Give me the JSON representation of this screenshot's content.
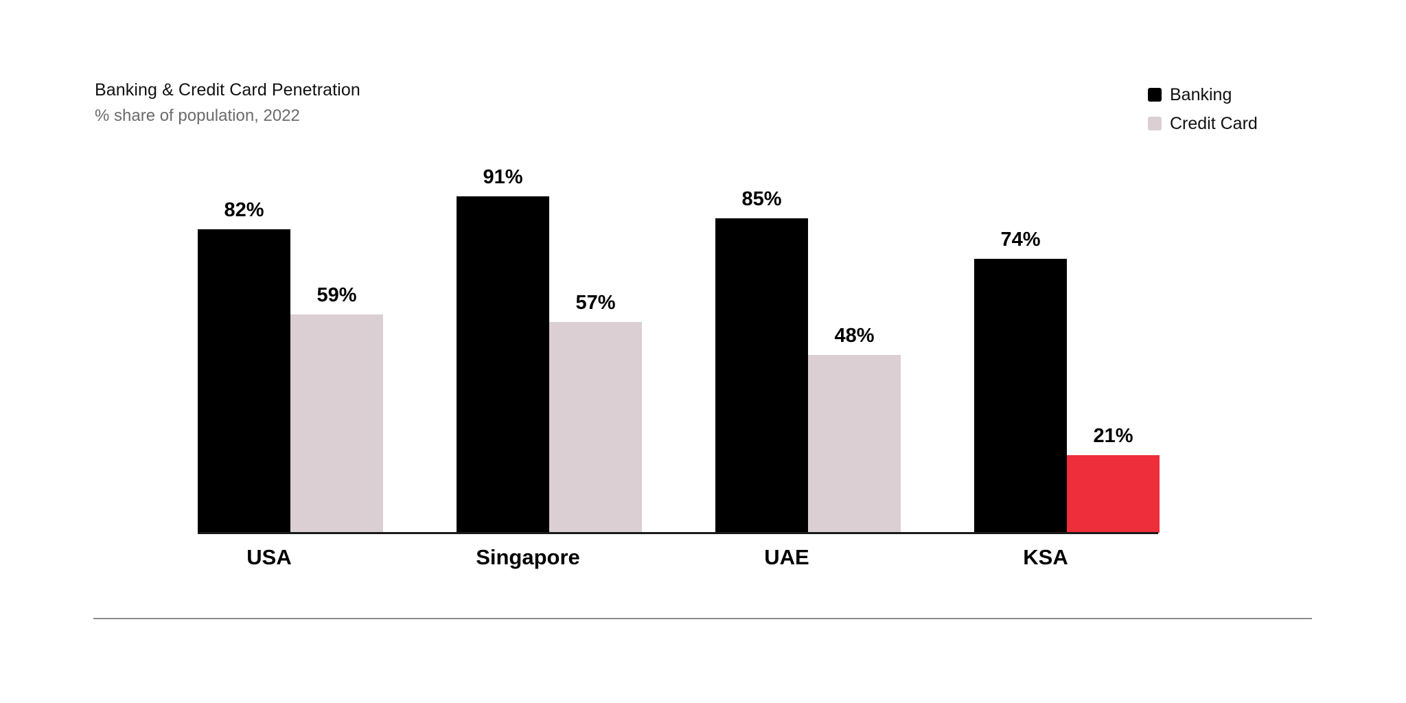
{
  "header": {
    "title": "Banking & Credit Card Penetration",
    "subtitle": "% share of population, 2022"
  },
  "legend": [
    {
      "label": "Banking",
      "color": "#000000"
    },
    {
      "label": "Credit Card",
      "color": "#dccfd3"
    }
  ],
  "colors": {
    "banking": "#000000",
    "credit_card": "#dccfd3",
    "highlight": "#ee2e3a",
    "axis": "#1a1a1a",
    "divider": "#8c8c8c"
  },
  "chart_data": {
    "type": "bar",
    "title": "Banking & Credit Card Penetration",
    "subtitle": "% share of population, 2022",
    "xlabel": "",
    "ylabel": "",
    "categories": [
      "USA",
      "Singapore",
      "UAE",
      "KSA"
    ],
    "series": [
      {
        "name": "Banking",
        "values": [
          82,
          91,
          85,
          74
        ],
        "color": "#000000"
      },
      {
        "name": "Credit Card",
        "values": [
          59,
          57,
          48,
          21
        ],
        "color": "#dccfd3",
        "highlight": {
          "KSA": "#ee2e3a"
        }
      }
    ],
    "data_labels": {
      "Banking": [
        "82%",
        "91%",
        "85%",
        "74%"
      ],
      "Credit Card": [
        "59%",
        "57%",
        "48%",
        "21%"
      ]
    },
    "ylim": [
      0,
      100
    ],
    "grid": false,
    "y_axis_visible": false,
    "legend_position": "top-right"
  }
}
